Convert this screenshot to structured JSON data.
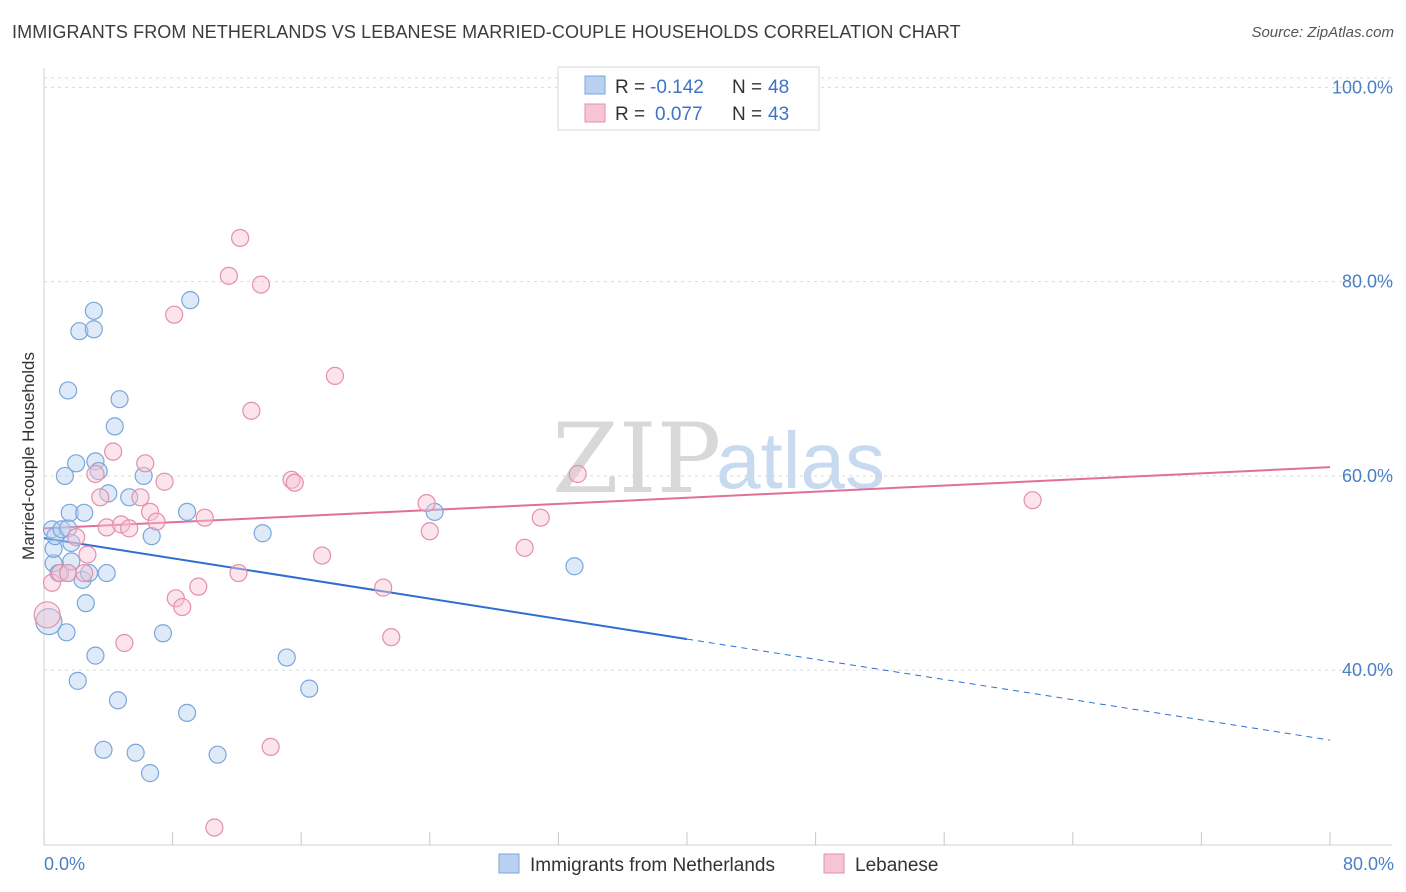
{
  "header": {
    "title": "IMMIGRANTS FROM NETHERLANDS VS LEBANESE MARRIED-COUPLE HOUSEHOLDS CORRELATION CHART",
    "source": "Source: ZipAtlas.com"
  },
  "watermark": {
    "zip": "ZIP",
    "atlas": "atlas"
  },
  "colors": {
    "blue_fill": "#b8d1f0",
    "blue_stroke": "#7aa6dc",
    "blue_line": "#2f6fcf",
    "pink_fill": "#f6c4d3",
    "pink_stroke": "#e58fab",
    "pink_line": "#e0709a",
    "grid": "#d9d9d9",
    "tick_text": "#4a7fc4"
  },
  "legend": {
    "rows": [
      {
        "r_label": "R =",
        "r_value": "-0.142",
        "n_label": "N =",
        "n_value": "48",
        "color": "blue"
      },
      {
        "r_label": "R =",
        "r_value": "0.077",
        "n_label": "N =",
        "n_value": "43",
        "color": "pink"
      }
    ]
  },
  "bottom_legend": [
    {
      "label": "Immigrants from Netherlands",
      "color": "blue"
    },
    {
      "label": "Lebanese",
      "color": "pink"
    }
  ],
  "chart_data": {
    "type": "scatter",
    "title": "IMMIGRANTS FROM NETHERLANDS VS LEBANESE MARRIED-COUPLE HOUSEHOLDS CORRELATION CHART",
    "xlabel": "",
    "ylabel": "Married-couple Households",
    "xlim": [
      0,
      80
    ],
    "ylim": [
      22,
      102
    ],
    "x_tick_labels": [
      "0.0%",
      "80.0%"
    ],
    "y_ticks": [
      40,
      60,
      80,
      100
    ],
    "y_tick_labels": [
      "40.0%",
      "60.0%",
      "80.0%",
      "100.0%"
    ],
    "grid": true,
    "series": [
      {
        "name": "Immigrants from Netherlands",
        "color": "blue",
        "R": -0.142,
        "N": 48,
        "trend": {
          "x0": 0,
          "y0": 53.6,
          "x1": 40,
          "y1": 43.2,
          "dash_to_x": 80,
          "dash_to_y": 32.8
        },
        "points": [
          [
            0.3,
            45.0
          ],
          [
            0.5,
            54.5
          ],
          [
            0.6,
            51.0
          ],
          [
            0.6,
            52.5
          ],
          [
            0.7,
            53.8
          ],
          [
            0.9,
            50.0
          ],
          [
            1.1,
            54.5
          ],
          [
            1.3,
            60.0
          ],
          [
            1.5,
            50.0
          ],
          [
            1.5,
            54.6
          ],
          [
            1.4,
            43.9
          ],
          [
            1.5,
            68.8
          ],
          [
            1.6,
            56.2
          ],
          [
            1.7,
            53.1
          ],
          [
            1.7,
            51.2
          ],
          [
            2.0,
            61.3
          ],
          [
            2.1,
            38.9
          ],
          [
            2.2,
            74.9
          ],
          [
            2.4,
            49.3
          ],
          [
            2.5,
            56.2
          ],
          [
            2.6,
            46.9
          ],
          [
            2.8,
            50.0
          ],
          [
            3.1,
            75.1
          ],
          [
            3.1,
            77.0
          ],
          [
            3.2,
            61.5
          ],
          [
            3.2,
            41.5
          ],
          [
            3.4,
            60.5
          ],
          [
            3.7,
            31.8
          ],
          [
            3.9,
            50.0
          ],
          [
            4.0,
            58.2
          ],
          [
            4.4,
            65.1
          ],
          [
            4.6,
            36.9
          ],
          [
            4.7,
            67.9
          ],
          [
            5.3,
            57.8
          ],
          [
            5.7,
            31.5
          ],
          [
            6.2,
            60.0
          ],
          [
            6.6,
            29.4
          ],
          [
            6.7,
            53.8
          ],
          [
            7.4,
            43.8
          ],
          [
            8.9,
            35.6
          ],
          [
            8.9,
            56.3
          ],
          [
            9.1,
            78.1
          ],
          [
            10.8,
            31.3
          ],
          [
            13.6,
            54.1
          ],
          [
            15.1,
            41.3
          ],
          [
            16.5,
            38.1
          ],
          [
            24.3,
            56.3
          ],
          [
            33.0,
            50.7
          ]
        ]
      },
      {
        "name": "Lebanese",
        "color": "pink",
        "R": 0.077,
        "N": 43,
        "trend": {
          "x0": 0,
          "y0": 54.6,
          "x1": 80,
          "y1": 60.9
        },
        "points": [
          [
            0.2,
            45.7
          ],
          [
            0.5,
            49.0
          ],
          [
            1.0,
            50.0
          ],
          [
            1.5,
            50.0
          ],
          [
            2.0,
            53.7
          ],
          [
            2.5,
            50.0
          ],
          [
            2.7,
            51.9
          ],
          [
            3.2,
            60.2
          ],
          [
            3.5,
            57.8
          ],
          [
            3.9,
            54.7
          ],
          [
            4.3,
            62.5
          ],
          [
            4.8,
            55.0
          ],
          [
            5.0,
            42.8
          ],
          [
            5.3,
            54.6
          ],
          [
            6.0,
            57.8
          ],
          [
            6.3,
            61.3
          ],
          [
            6.6,
            56.3
          ],
          [
            7.0,
            55.3
          ],
          [
            7.5,
            59.4
          ],
          [
            8.2,
            47.4
          ],
          [
            8.6,
            46.5
          ],
          [
            8.1,
            76.6
          ],
          [
            9.6,
            48.6
          ],
          [
            10.0,
            55.7
          ],
          [
            10.6,
            23.8
          ],
          [
            11.5,
            80.6
          ],
          [
            12.1,
            50.0
          ],
          [
            12.2,
            84.5
          ],
          [
            12.9,
            66.7
          ],
          [
            13.5,
            79.7
          ],
          [
            14.1,
            32.1
          ],
          [
            15.4,
            59.6
          ],
          [
            15.6,
            59.3
          ],
          [
            17.3,
            51.8
          ],
          [
            18.1,
            70.3
          ],
          [
            21.1,
            48.5
          ],
          [
            21.6,
            43.4
          ],
          [
            23.8,
            57.2
          ],
          [
            24.0,
            54.3
          ],
          [
            29.9,
            52.6
          ],
          [
            30.9,
            55.7
          ],
          [
            33.2,
            60.2
          ],
          [
            61.5,
            57.5
          ]
        ]
      }
    ]
  }
}
